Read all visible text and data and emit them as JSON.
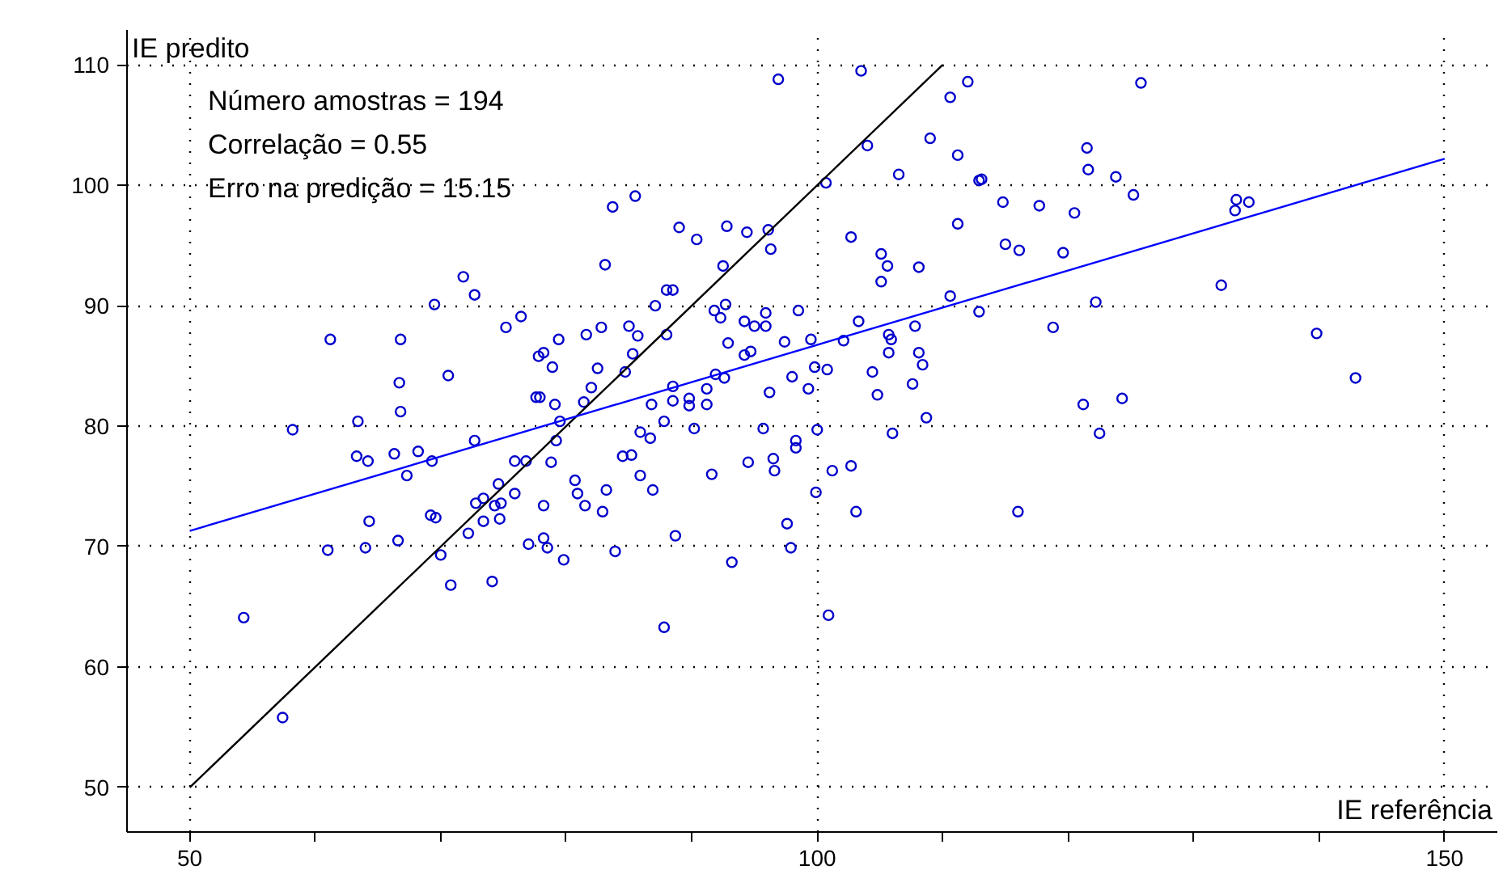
{
  "chart_data": {
    "type": "scatter",
    "xlabel": "IE referência",
    "ylabel": "IE predito",
    "annotations": [
      "Número amostras = 194",
      "Correlação = 0.55",
      "Erro na predição = 15.15"
    ],
    "xlim": [
      45.0,
      154.2
    ],
    "ylim": [
      46.3,
      112.9
    ],
    "xticks": [
      50,
      {
        "value": 60,
        "label": null
      },
      {
        "value": 70,
        "label": null
      },
      {
        "value": 80,
        "label": null
      },
      {
        "value": 90,
        "label": null
      },
      100,
      {
        "value": 110,
        "label": null
      },
      {
        "value": 120,
        "label": null
      },
      {
        "value": 130,
        "label": null
      },
      {
        "value": 140,
        "label": null
      },
      150
    ],
    "yticks": [
      50,
      60,
      70,
      80,
      90,
      100,
      110
    ],
    "grid": true,
    "series": [
      {
        "marker": "circle",
        "color": "#0000cc",
        "x": [
          96.9,
          103.5,
          112.0,
          110.6,
          109.0,
          111.2,
          104.0,
          106.5,
          112.9,
          113.1,
          100.7,
          114.8,
          117.7,
          83.7,
          85.5,
          89.0,
          90.4,
          92.8,
          94.4,
          96.1,
          96.3,
          92.5,
          83.1,
          102.7,
          111.2,
          115.0,
          116.1,
          105.1,
          105.6,
          105.1,
          108.1,
          88.0,
          88.5,
          87.1,
          92.7,
          91.8,
          92.3,
          95.9,
          98.5,
          94.2,
          95.0,
          95.9,
          81.6,
          82.8,
          85.0,
          85.7,
          88.0,
          85.3,
          82.5,
          84.7,
          82.0,
          92.9,
          94.2,
          94.7,
          97.4,
          99.5,
          102.1,
          103.3,
          105.7,
          105.9,
          105.7,
          107.8,
          108.1,
          108.4,
          110.6,
          112.9,
          91.9,
          92.6,
          91.2,
          88.5,
          88.5,
          89.8,
          89.8,
          91.2,
          86.8,
          96.2,
          98.0,
          99.3,
          99.8,
          100.8,
          104.4,
          104.8,
          107.6,
          108.7,
          87.8,
          90.2,
          95.7,
          100.0,
          85.9,
          106.0,
          81.4,
          125.8,
          121.5,
          121.6,
          123.8,
          125.2,
          120.5,
          133.4,
          134.4,
          133.3,
          119.6,
          132.2,
          122.2,
          118.8,
          139.8,
          142.9,
          121.2,
          124.3,
          122.5,
          71.8,
          72.7,
          69.5,
          75.2,
          76.4,
          61.2,
          66.8,
          78.2,
          77.8,
          79.4,
          78.9,
          70.6,
          66.7,
          77.6,
          77.9,
          79.1,
          66.8,
          63.4,
          58.2,
          79.5,
          63.3,
          64.2,
          66.3,
          68.2,
          69.3,
          72.7,
          67.3,
          75.9,
          76.8,
          78.8,
          79.2,
          74.6,
          75.9,
          73.4,
          72.8,
          74.3,
          74.8,
          78.2,
          80.7,
          80.9,
          81.5,
          64.3,
          69.2,
          69.6,
          73.4,
          74.7,
          72.2,
          66.6,
          77.0,
          78.2,
          78.5,
          79.8,
          61.0,
          64.0,
          70.0,
          70.8,
          74.1,
          54.3,
          57.4,
          86.7,
          98.3,
          98.3,
          84.5,
          85.2,
          94.5,
          96.5,
          96.6,
          91.6,
          101.2,
          102.7,
          85.9,
          83.2,
          86.9,
          82.9,
          99.9,
          103.1,
          116.0,
          97.6,
          88.7,
          83.9,
          97.9,
          93.2,
          100.9,
          87.8
        ],
        "values": [
          108.8,
          109.5,
          108.6,
          107.3,
          103.9,
          102.5,
          103.3,
          100.9,
          100.4,
          100.5,
          100.2,
          98.6,
          98.3,
          98.2,
          99.1,
          96.5,
          95.5,
          96.6,
          96.1,
          96.3,
          94.7,
          93.3,
          93.4,
          95.7,
          96.8,
          95.1,
          94.6,
          94.3,
          93.3,
          92.0,
          93.2,
          91.3,
          91.3,
          90.0,
          90.1,
          89.6,
          89.0,
          89.4,
          89.6,
          88.7,
          88.3,
          88.3,
          87.6,
          88.2,
          88.3,
          87.5,
          87.6,
          86.0,
          84.8,
          84.5,
          83.2,
          86.9,
          85.9,
          86.2,
          87.0,
          87.2,
          87.1,
          88.7,
          87.6,
          87.2,
          86.1,
          88.3,
          86.1,
          85.1,
          90.8,
          89.5,
          84.3,
          84.0,
          83.1,
          83.3,
          82.1,
          82.3,
          81.7,
          81.8,
          81.8,
          82.8,
          84.1,
          83.1,
          84.9,
          84.7,
          84.5,
          82.6,
          83.5,
          80.7,
          80.4,
          79.8,
          79.8,
          79.7,
          79.5,
          79.4,
          82.0,
          108.5,
          103.1,
          101.3,
          100.7,
          99.2,
          97.7,
          98.8,
          98.6,
          97.9,
          94.4,
          91.7,
          90.3,
          88.2,
          87.7,
          84.0,
          81.8,
          82.3,
          79.4,
          92.4,
          90.9,
          90.1,
          88.2,
          89.1,
          87.2,
          87.2,
          86.1,
          85.8,
          87.2,
          84.9,
          84.2,
          83.6,
          82.4,
          82.4,
          81.8,
          81.2,
          80.4,
          79.7,
          80.4,
          77.5,
          77.1,
          77.7,
          77.9,
          77.1,
          78.8,
          75.9,
          77.1,
          77.1,
          77.0,
          78.8,
          75.2,
          74.4,
          74.0,
          73.6,
          73.4,
          73.6,
          73.4,
          75.5,
          74.4,
          73.4,
          72.1,
          72.6,
          72.4,
          72.1,
          72.3,
          71.1,
          70.5,
          70.2,
          70.7,
          69.9,
          68.9,
          69.7,
          69.9,
          69.3,
          66.8,
          67.1,
          64.1,
          55.8,
          79.0,
          78.8,
          78.2,
          77.5,
          77.6,
          77.0,
          77.3,
          76.3,
          76.0,
          76.3,
          76.7,
          75.9,
          74.7,
          74.7,
          72.9,
          74.5,
          72.9,
          72.9,
          71.9,
          70.9,
          69.6,
          69.9,
          68.7,
          64.3,
          63.3
        ]
      },
      {
        "type": "line",
        "color": "#000000",
        "x": [
          50,
          110
        ],
        "values": [
          50,
          110
        ]
      },
      {
        "type": "line",
        "color": "#0000ff",
        "x": [
          50,
          150
        ],
        "values": [
          71.3,
          102.2
        ]
      }
    ]
  }
}
